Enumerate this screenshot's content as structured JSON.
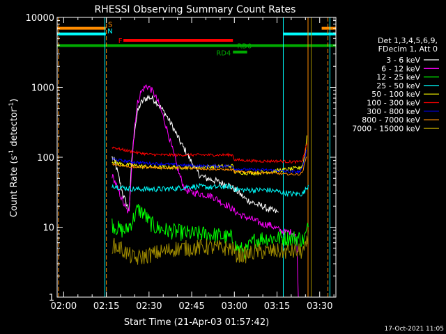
{
  "chart_data": {
    "type": "line",
    "title": "RHESSI Observing Summary Count Rates",
    "xlabel": "Start Time (21-Apr-03 01:57:42)",
    "ylabel_parts": [
      "Count Rate (s",
      "-1",
      " detector",
      "-1",
      ")"
    ],
    "y_scale": "log",
    "ylim": [
      1,
      10000
    ],
    "xlim_minutes": [
      117.7,
      215.7
    ],
    "x_ticks": [
      {
        "t": 120,
        "label": "02:00"
      },
      {
        "t": 135,
        "label": "02:15"
      },
      {
        "t": 150,
        "label": "02:30"
      },
      {
        "t": 165,
        "label": "02:45"
      },
      {
        "t": 180,
        "label": "03:00"
      },
      {
        "t": 195,
        "label": "03:15"
      },
      {
        "t": 210,
        "label": "03:30"
      }
    ],
    "y_ticks": [
      {
        "v": 1,
        "label": "1"
      },
      {
        "v": 10,
        "label": "10"
      },
      {
        "v": 100,
        "label": "100"
      },
      {
        "v": 1000,
        "label": "1000"
      },
      {
        "v": 10000,
        "label": "10000"
      }
    ],
    "legend_header": [
      "Det 1,3,4,5,6,9,",
      "FDecim 1, Att 0"
    ],
    "series": [
      {
        "name": "3 - 6 keV",
        "color": "#ffffff",
        "noise": 0.05,
        "points": [
          [
            137,
            100
          ],
          [
            138,
            85
          ],
          [
            139,
            60
          ],
          [
            140,
            40
          ],
          [
            141,
            28
          ],
          [
            142,
            22
          ],
          [
            143,
            18
          ],
          [
            144,
            100
          ],
          [
            145,
            260
          ],
          [
            146,
            450
          ],
          [
            147,
            580
          ],
          [
            148,
            650
          ],
          [
            149,
            700
          ],
          [
            150,
            720
          ],
          [
            151,
            700
          ],
          [
            152,
            650
          ],
          [
            153,
            600
          ],
          [
            154,
            520
          ],
          [
            155,
            460
          ],
          [
            156,
            400
          ],
          [
            157,
            340
          ],
          [
            158,
            290
          ],
          [
            159,
            240
          ],
          [
            160,
            200
          ],
          [
            161,
            165
          ],
          [
            162,
            140
          ],
          [
            163,
            120
          ],
          [
            164,
            100
          ],
          [
            165,
            85
          ],
          [
            166,
            72
          ],
          [
            167,
            62
          ],
          [
            168,
            55
          ],
          [
            170,
            50
          ],
          [
            172,
            48
          ],
          [
            174,
            45
          ],
          [
            176,
            42
          ],
          [
            178,
            40
          ],
          [
            180,
            35
          ],
          [
            182,
            30
          ],
          [
            184,
            25
          ],
          [
            186,
            23
          ],
          [
            188,
            21
          ],
          [
            190,
            20
          ],
          [
            192,
            18
          ],
          [
            194,
            17
          ],
          [
            195.6,
            16
          ]
        ]
      },
      {
        "name": "6 - 12 keV",
        "color": "#ff00ff",
        "noise": 0.05,
        "points": [
          [
            137,
            55
          ],
          [
            138,
            45
          ],
          [
            139,
            35
          ],
          [
            140,
            28
          ],
          [
            141,
            22
          ],
          [
            142,
            18
          ],
          [
            143,
            16
          ],
          [
            144,
            90
          ],
          [
            145,
            300
          ],
          [
            146,
            600
          ],
          [
            147,
            820
          ],
          [
            148,
            950
          ],
          [
            149,
            1050
          ],
          [
            150,
            1000
          ],
          [
            151,
            900
          ],
          [
            152,
            780
          ],
          [
            153,
            640
          ],
          [
            154,
            500
          ],
          [
            155,
            380
          ],
          [
            156,
            280
          ],
          [
            157,
            200
          ],
          [
            158,
            140
          ],
          [
            159,
            100
          ],
          [
            160,
            70
          ],
          [
            161,
            52
          ],
          [
            162,
            40
          ],
          [
            163,
            34
          ],
          [
            164,
            32
          ],
          [
            166,
            31
          ],
          [
            168,
            30
          ],
          [
            170,
            29
          ],
          [
            172,
            28
          ],
          [
            174,
            25
          ],
          [
            176,
            22
          ],
          [
            178,
            20
          ],
          [
            180,
            17
          ],
          [
            182,
            15
          ],
          [
            184,
            14
          ],
          [
            186,
            13
          ],
          [
            188,
            12
          ],
          [
            190,
            11
          ],
          [
            192,
            11
          ],
          [
            194,
            10
          ],
          [
            196,
            9
          ],
          [
            198,
            8.5
          ],
          [
            200,
            8.5
          ],
          [
            201.5,
            8
          ],
          [
            202,
            5
          ],
          [
            202.5,
            1
          ]
        ]
      },
      {
        "name": "12 - 25 keV",
        "color": "#00ff00",
        "noise": 0.12,
        "points": [
          [
            137,
            11
          ],
          [
            140,
            9
          ],
          [
            142,
            9
          ],
          [
            144,
            12
          ],
          [
            146,
            18
          ],
          [
            148,
            16
          ],
          [
            150,
            12
          ],
          [
            152,
            10
          ],
          [
            156,
            9
          ],
          [
            160,
            8.5
          ],
          [
            165,
            8
          ],
          [
            170,
            8
          ],
          [
            175,
            7.5
          ],
          [
            179,
            7
          ],
          [
            181,
            5
          ],
          [
            184,
            4.5
          ],
          [
            187,
            6.5
          ],
          [
            190,
            7
          ],
          [
            195,
            7
          ],
          [
            200,
            7
          ],
          [
            203,
            7
          ],
          [
            204,
            6.5
          ],
          [
            205,
            7.5
          ],
          [
            206,
            10
          ]
        ]
      },
      {
        "name": "25 - 50 keV",
        "color": "#00ffff",
        "noise": 0.04,
        "points": [
          [
            137,
            40
          ],
          [
            140,
            37
          ],
          [
            145,
            35
          ],
          [
            150,
            35
          ],
          [
            155,
            35
          ],
          [
            160,
            36
          ],
          [
            164,
            38
          ],
          [
            168,
            38
          ],
          [
            172,
            37
          ],
          [
            176,
            38
          ],
          [
            179.5,
            38
          ],
          [
            180,
            35
          ],
          [
            184,
            34
          ],
          [
            188,
            34
          ],
          [
            192,
            34
          ],
          [
            196,
            32
          ],
          [
            200,
            30
          ],
          [
            203,
            30
          ],
          [
            204,
            30
          ],
          [
            205,
            34
          ],
          [
            206,
            40
          ]
        ]
      },
      {
        "name": "50 - 100 keV",
        "color": "#ffff00",
        "noise": 0.03,
        "points": [
          [
            137,
            88
          ],
          [
            140,
            80
          ],
          [
            145,
            76
          ],
          [
            150,
            73
          ],
          [
            155,
            72
          ],
          [
            160,
            72
          ],
          [
            165,
            72
          ],
          [
            170,
            73
          ],
          [
            175,
            74
          ],
          [
            179.5,
            75
          ],
          [
            180,
            62
          ],
          [
            184,
            60
          ],
          [
            188,
            60
          ],
          [
            192,
            62
          ],
          [
            196,
            65
          ],
          [
            200,
            68
          ],
          [
            203,
            70
          ],
          [
            204,
            78
          ],
          [
            205,
            120
          ],
          [
            205.7,
            250
          ]
        ]
      },
      {
        "name": "100 - 300 keV",
        "color": "#ff0000",
        "noise": 0.02,
        "points": [
          [
            137,
            140
          ],
          [
            140,
            130
          ],
          [
            145,
            118
          ],
          [
            150,
            110
          ],
          [
            155,
            108
          ],
          [
            160,
            108
          ],
          [
            165,
            108
          ],
          [
            170,
            108
          ],
          [
            175,
            108
          ],
          [
            179.5,
            108
          ],
          [
            180,
            92
          ],
          [
            184,
            90
          ],
          [
            188,
            88
          ],
          [
            192,
            88
          ],
          [
            196,
            88
          ],
          [
            200,
            86
          ],
          [
            203,
            86
          ],
          [
            204,
            92
          ],
          [
            205,
            130
          ],
          [
            205.7,
            170
          ]
        ]
      },
      {
        "name": "300 - 800 keV",
        "color": "#0000ff",
        "noise": 0.02,
        "points": [
          [
            137,
            95
          ],
          [
            140,
            90
          ],
          [
            145,
            85
          ],
          [
            150,
            82
          ],
          [
            155,
            80
          ],
          [
            160,
            78
          ],
          [
            165,
            76
          ],
          [
            170,
            75
          ],
          [
            175,
            75
          ],
          [
            179.5,
            75
          ],
          [
            180,
            68
          ],
          [
            184,
            67
          ],
          [
            188,
            66
          ],
          [
            192,
            66
          ],
          [
            196,
            64
          ],
          [
            200,
            62
          ],
          [
            203,
            62
          ],
          [
            204,
            70
          ],
          [
            205,
            110
          ],
          [
            205.7,
            140
          ]
        ]
      },
      {
        "name": "800 - 7000 keV",
        "color": "#ff8c00",
        "noise": 0.015,
        "points": [
          [
            137,
            80
          ],
          [
            140,
            76
          ],
          [
            145,
            72
          ],
          [
            150,
            72
          ],
          [
            155,
            70
          ],
          [
            160,
            70
          ],
          [
            165,
            70
          ],
          [
            170,
            68
          ],
          [
            175,
            67
          ],
          [
            179.5,
            66
          ],
          [
            180,
            62
          ],
          [
            184,
            62
          ],
          [
            188,
            60
          ],
          [
            192,
            60
          ],
          [
            196,
            58
          ],
          [
            200,
            57
          ],
          [
            203,
            57
          ],
          [
            204,
            62
          ],
          [
            205,
            90
          ],
          [
            205.7,
            110
          ]
        ]
      },
      {
        "name": "7000 - 15000 keV",
        "color": "#a08c00",
        "noise": 0.12,
        "points": [
          [
            137,
            5.5
          ],
          [
            140,
            5
          ],
          [
            143,
            4
          ],
          [
            145,
            3.5
          ],
          [
            150,
            4
          ],
          [
            155,
            4.5
          ],
          [
            160,
            5
          ],
          [
            165,
            5
          ],
          [
            170,
            5.2
          ],
          [
            175,
            5
          ],
          [
            179,
            5
          ],
          [
            181,
            4
          ],
          [
            184,
            4
          ],
          [
            188,
            4.5
          ],
          [
            192,
            4.5
          ],
          [
            196,
            4.5
          ],
          [
            200,
            4.5
          ],
          [
            203,
            4.5
          ],
          [
            204,
            4.5
          ],
          [
            205,
            4.8
          ],
          [
            206,
            7
          ]
        ]
      }
    ],
    "flags": [
      {
        "label": "S",
        "color": "#ff8c00",
        "value": 7000,
        "segments": [
          [
            117.7,
            134.8
          ],
          [
            210.7,
            215.7
          ]
        ]
      },
      {
        "label": "N",
        "color": "#00ffff",
        "value": 5800,
        "segments": [
          [
            117.7,
            134.8
          ],
          [
            197.2,
            215.7
          ]
        ]
      },
      {
        "label": "F",
        "color": "#ff0000",
        "value": 4700,
        "segments": [
          [
            141,
            179.5
          ]
        ]
      },
      {
        "label": "RD0",
        "color": "#00aa00",
        "value": 3950,
        "segments": [
          [
            117.7,
            215.7
          ]
        ]
      },
      {
        "label": "RD4",
        "color": "#00aa00",
        "value": 3200,
        "segments": [
          [
            179.5,
            184.5
          ]
        ]
      }
    ],
    "vlines": [
      {
        "t": 117.7,
        "color": "#00ffff",
        "dash": false
      },
      {
        "t": 118.2,
        "color": "#ff8c00",
        "dash": true
      },
      {
        "t": 134.5,
        "color": "#00ffff",
        "dash": false
      },
      {
        "t": 135.0,
        "color": "#ff8c00",
        "dash": true
      },
      {
        "t": 197.2,
        "color": "#00ffff",
        "dash": false
      },
      {
        "t": 205.9,
        "color": "#ff8c00",
        "dash": false
      },
      {
        "t": 207.0,
        "color": "#a08c00",
        "dash": false
      },
      {
        "t": 212.9,
        "color": "#ff8c00",
        "dash": true
      },
      {
        "t": 213.6,
        "color": "#00ffff",
        "dash": false
      }
    ]
  },
  "footer_date": "17-Oct-2021 11:05"
}
